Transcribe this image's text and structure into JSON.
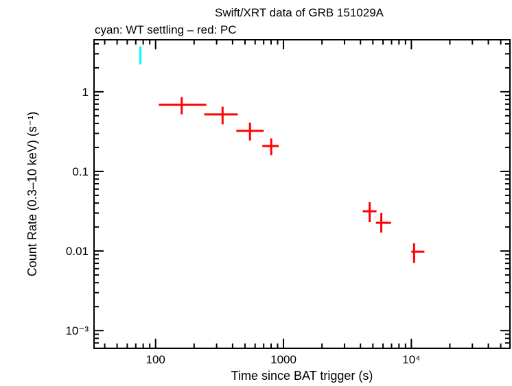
{
  "chart_data": {
    "type": "scatter",
    "title": "Swift/XRT data of GRB 151029A",
    "subtitle": "cyan: WT settling – red: PC",
    "xlabel": "Time since BAT trigger (s)",
    "ylabel": "Count Rate (0.3–10 keV) (s⁻¹)",
    "xscale": "log",
    "yscale": "log",
    "xlim": [
      33,
      59000
    ],
    "ylim": [
      0.0006,
      4.5
    ],
    "x_ticks": [
      {
        "value": 100,
        "label": "100"
      },
      {
        "value": 1000,
        "label": "1000"
      },
      {
        "value": 10000,
        "label": "10⁴"
      }
    ],
    "y_ticks": [
      {
        "value": 1,
        "label": "1"
      },
      {
        "value": 0.1,
        "label": "0.1"
      },
      {
        "value": 0.01,
        "label": "0.01"
      },
      {
        "value": 0.001,
        "label": "10⁻³"
      }
    ],
    "grid": false,
    "series": [
      {
        "color": "#00ffff",
        "points": [
          {
            "x": 76,
            "xlo": 75,
            "xhi": 77,
            "y": 2.98,
            "ylo": 2.2,
            "yhi": 3.7
          }
        ]
      },
      {
        "color": "#ff0000",
        "points": [
          {
            "x": 160,
            "xlo": 106,
            "xhi": 249,
            "y": 0.686,
            "ylo": 0.52,
            "yhi": 0.86
          },
          {
            "x": 334,
            "xlo": 240,
            "xhi": 439,
            "y": 0.52,
            "ylo": 0.39,
            "yhi": 0.65
          },
          {
            "x": 547,
            "xlo": 428,
            "xhi": 700,
            "y": 0.323,
            "ylo": 0.244,
            "yhi": 0.41
          },
          {
            "x": 802,
            "xlo": 683,
            "xhi": 918,
            "y": 0.208,
            "ylo": 0.16,
            "yhi": 0.26
          },
          {
            "x": 4720,
            "xlo": 4170,
            "xhi": 5340,
            "y": 0.0316,
            "ylo": 0.023,
            "yhi": 0.041
          },
          {
            "x": 5820,
            "xlo": 5280,
            "xhi": 6920,
            "y": 0.0226,
            "ylo": 0.017,
            "yhi": 0.03
          },
          {
            "x": 10500,
            "xlo": 10000,
            "xhi": 12650,
            "y": 0.0098,
            "ylo": 0.0071,
            "yhi": 0.0125
          }
        ]
      }
    ]
  }
}
